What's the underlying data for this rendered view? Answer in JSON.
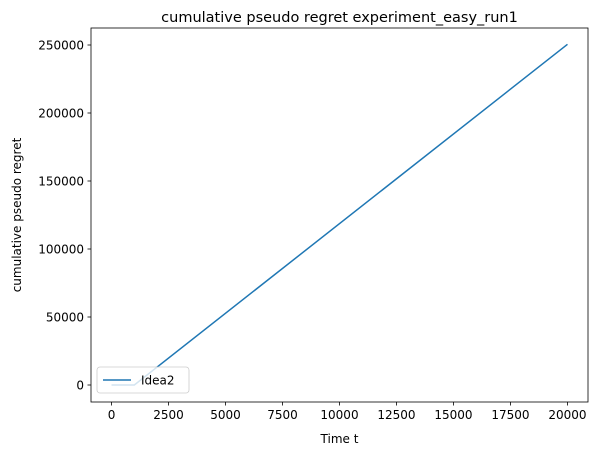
{
  "chart_data": {
    "type": "line",
    "title": "cumulative pseudo regret experiment_easy_run1",
    "xlabel": "Time t",
    "ylabel": "cumulative pseudo regret",
    "xlim": [
      -900,
      20900
    ],
    "ylim": [
      -12500,
      262500
    ],
    "xticks": [
      0,
      2500,
      5000,
      7500,
      10000,
      12500,
      15000,
      17500,
      20000
    ],
    "yticks": [
      0,
      50000,
      100000,
      150000,
      200000,
      250000
    ],
    "grid": false,
    "legend_position": "lower left",
    "series": [
      {
        "name": "Idea2",
        "color": "#1f77b4",
        "x": [
          0,
          1000,
          20000
        ],
        "y": [
          0,
          0,
          250500
        ]
      }
    ]
  }
}
